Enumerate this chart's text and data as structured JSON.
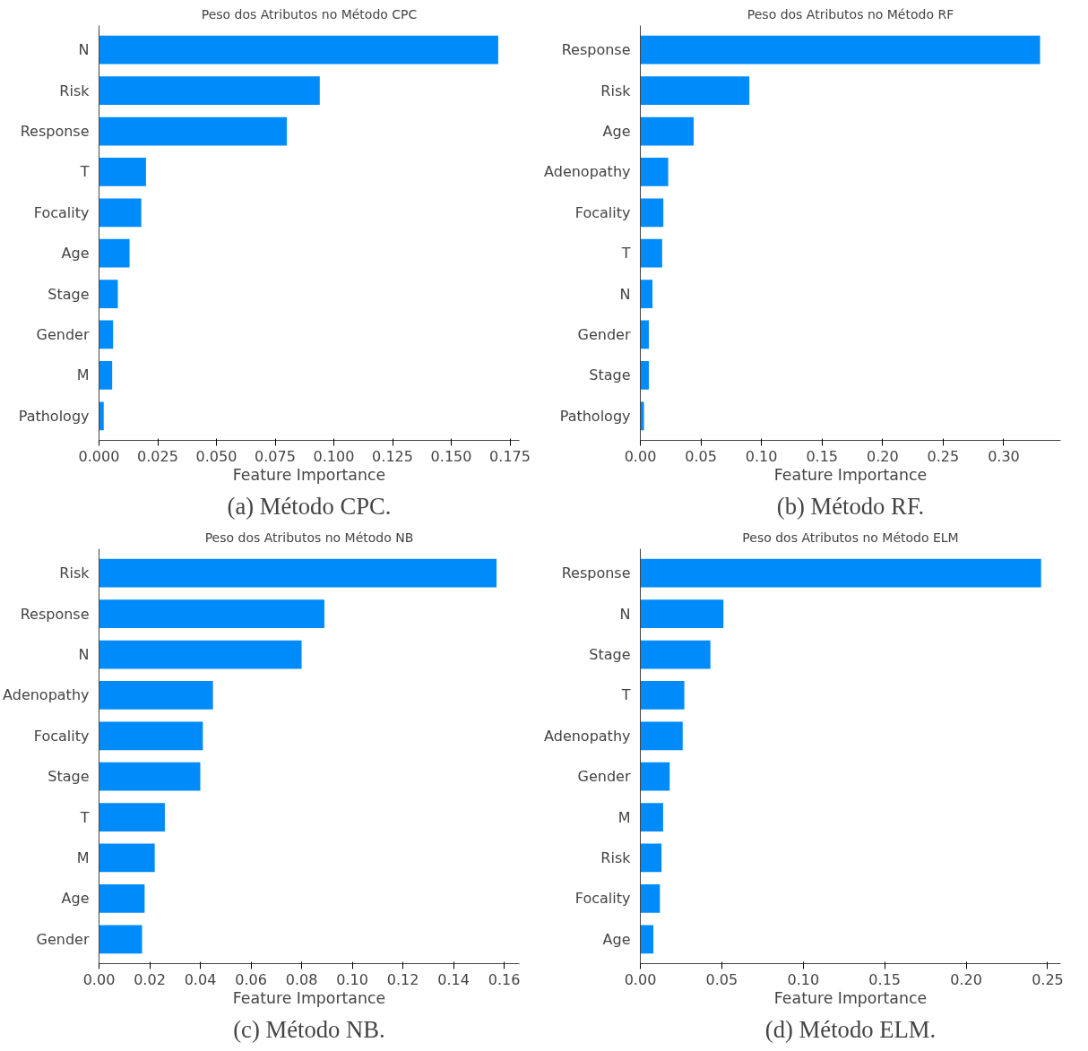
{
  "chart_data": [
    {
      "type": "bar",
      "orientation": "horizontal",
      "title": "Peso dos Atributos no Método CPC",
      "xlabel": "Feature Importance",
      "annotations": [
        "(a) Método CPC."
      ],
      "color": "#008bfb",
      "categories": [
        "N",
        "Risk",
        "Response",
        "T",
        "Focality",
        "Age",
        "Stage",
        "Gender",
        "M",
        "Pathology"
      ],
      "values": [
        0.17,
        0.094,
        0.08,
        0.02,
        0.018,
        0.013,
        0.008,
        0.006,
        0.0056,
        0.002
      ],
      "xlim": [
        0,
        0.179
      ],
      "xticks": [
        {
          "value": 0,
          "label": "0.000"
        },
        0.025,
        {
          "value": 0.05,
          "label": "0.050"
        },
        {
          "value": 0.075,
          "label": "0.075"
        },
        {
          "value": 0.1,
          "label": "0.100"
        },
        0.125,
        {
          "value": 0.15,
          "label": "0.150"
        },
        0.175
      ]
    },
    {
      "type": "bar",
      "orientation": "horizontal",
      "title": "Peso dos Atributos no Método RF",
      "xlabel": "Feature Importance",
      "annotations": [
        "(b) Método RF."
      ],
      "color": "#008bfb",
      "categories": [
        "Response",
        "Risk",
        "Age",
        "Adenopathy",
        "Focality",
        "T",
        "N",
        "Gender",
        "Stage",
        "Pathology"
      ],
      "values": [
        0.33,
        0.09,
        0.044,
        0.023,
        0.019,
        0.018,
        0.01,
        0.007,
        0.007,
        0.003
      ],
      "xlim": [
        0,
        0.347
      ],
      "xticks": [
        {
          "value": 0,
          "label": "0.00"
        },
        0.05,
        {
          "value": 0.1,
          "label": "0.10"
        },
        0.15,
        {
          "value": 0.2,
          "label": "0.20"
        },
        0.25,
        {
          "value": 0.3,
          "label": "0.30"
        }
      ]
    },
    {
      "type": "bar",
      "orientation": "horizontal",
      "title": "Peso dos Atributos no Método NB",
      "xlabel": "Feature Importance",
      "annotations": [
        "(c) Método NB."
      ],
      "color": "#008bfb",
      "categories": [
        "Risk",
        "Response",
        "N",
        "Adenopathy",
        "Focality",
        "Stage",
        "T",
        "M",
        "Age",
        "Gender"
      ],
      "values": [
        0.157,
        0.089,
        0.08,
        0.045,
        0.041,
        0.04,
        0.026,
        0.022,
        0.018,
        0.017
      ],
      "xlim": [
        0,
        0.166
      ],
      "xticks": [
        {
          "value": 0,
          "label": "0.00"
        },
        0.02,
        0.04,
        0.06,
        0.08,
        {
          "value": 0.1,
          "label": "0.10"
        },
        0.12,
        0.14,
        0.16
      ]
    },
    {
      "type": "bar",
      "orientation": "horizontal",
      "title": "Peso dos Atributos no Método ELM",
      "xlabel": "Feature Importance",
      "annotations": [
        "(d) Método ELM."
      ],
      "color": "#008bfb",
      "categories": [
        "Response",
        "N",
        "Stage",
        "T",
        "Adenopathy",
        "Gender",
        "M",
        "Risk",
        "Focality",
        "Age"
      ],
      "values": [
        0.246,
        0.051,
        0.043,
        0.027,
        0.026,
        0.018,
        0.014,
        0.013,
        0.012,
        0.008
      ],
      "xlim": [
        0,
        0.258
      ],
      "xticks": [
        {
          "value": 0,
          "label": "0.00"
        },
        0.05,
        {
          "value": 0.1,
          "label": "0.10"
        },
        0.15,
        {
          "value": 0.2,
          "label": "0.20"
        },
        0.25
      ]
    }
  ]
}
